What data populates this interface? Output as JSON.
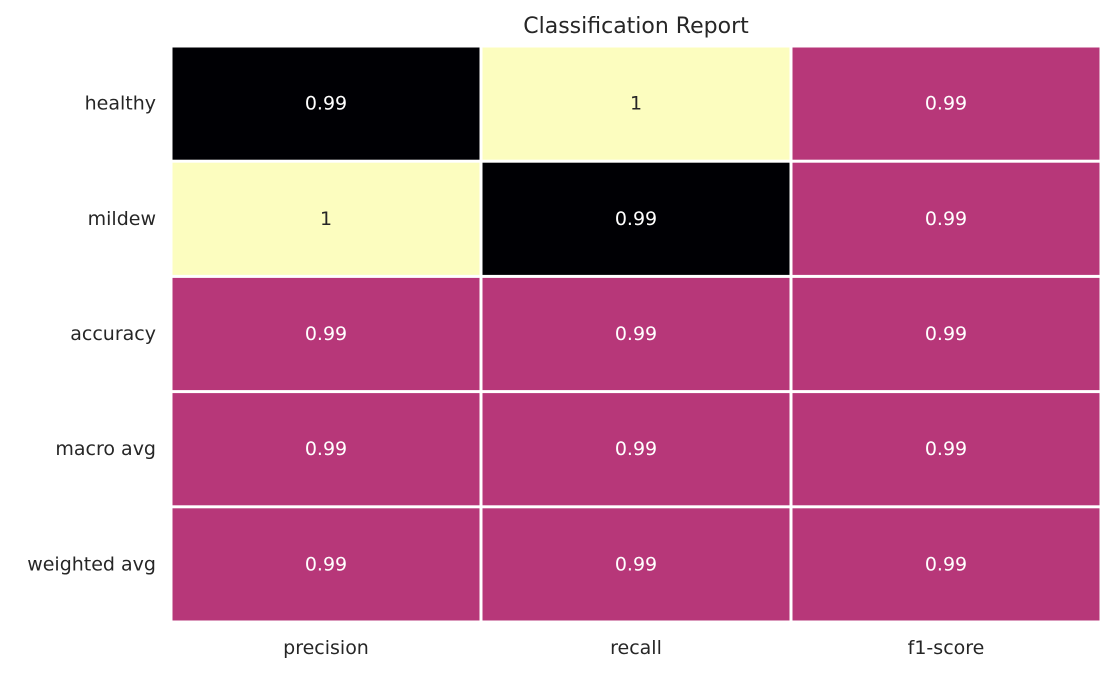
{
  "chart_data": {
    "type": "heatmap",
    "title": "Classification Report",
    "xlabel": "",
    "ylabel": "",
    "columns": [
      "precision",
      "recall",
      "f1-score"
    ],
    "rows": [
      "healthy",
      "mildew",
      "accuracy",
      "macro avg",
      "weighted avg"
    ],
    "display_values": [
      [
        "0.99",
        "1",
        "0.99"
      ],
      [
        "1",
        "0.99",
        "0.99"
      ],
      [
        "0.99",
        "0.99",
        "0.99"
      ],
      [
        "0.99",
        "0.99",
        "0.99"
      ],
      [
        "0.99",
        "0.99",
        "0.99"
      ]
    ],
    "colormap": "magma",
    "colorbar": false,
    "grid": false,
    "cell_colors": [
      [
        "#000004",
        "#fcfdbf",
        "#b73779"
      ],
      [
        "#fcfdbf",
        "#000004",
        "#b73779"
      ],
      [
        "#b73779",
        "#b73779",
        "#b73779"
      ],
      [
        "#b73779",
        "#b73779",
        "#b73779"
      ],
      [
        "#b73779",
        "#b73779",
        "#b73779"
      ]
    ],
    "cell_text_colors": [
      [
        "#ffffff",
        "#262626",
        "#ffffff"
      ],
      [
        "#262626",
        "#ffffff",
        "#ffffff"
      ],
      [
        "#ffffff",
        "#ffffff",
        "#ffffff"
      ],
      [
        "#ffffff",
        "#ffffff",
        "#ffffff"
      ],
      [
        "#ffffff",
        "#ffffff",
        "#ffffff"
      ]
    ]
  }
}
